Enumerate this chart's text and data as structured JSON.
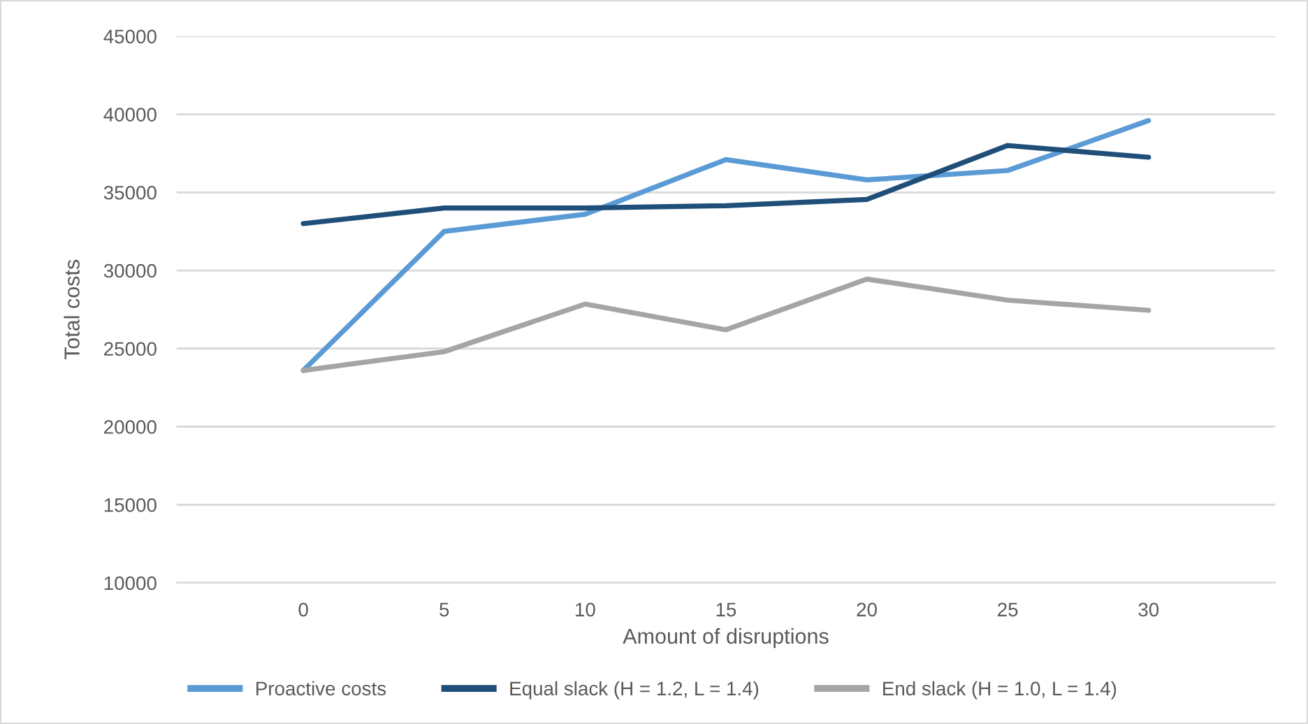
{
  "chart_data": {
    "type": "line",
    "xlabel": "Amount of disruptions",
    "ylabel": "Total costs",
    "categories": [
      "0",
      "5",
      "10",
      "15",
      "20",
      "25",
      "30"
    ],
    "series": [
      {
        "name": "Proactive costs",
        "color": "#5b9bd5",
        "values": [
          23600,
          32500,
          33600,
          37100,
          35800,
          36400,
          39600
        ]
      },
      {
        "name": "Equal slack (H = 1.2, L = 1.4)",
        "color": "#1f4e79",
        "values": [
          33000,
          34000,
          34000,
          34150,
          34550,
          38000,
          37250
        ]
      },
      {
        "name": "End slack (H = 1.0, L = 1.4)",
        "color": "#a5a5a5",
        "values": [
          23600,
          24800,
          27850,
          26200,
          29450,
          28100,
          27450
        ]
      }
    ],
    "ylim": [
      10000,
      45000
    ],
    "yticks": [
      10000,
      15000,
      20000,
      25000,
      30000,
      35000,
      40000,
      45000
    ],
    "grid": "y",
    "legend": "bottom",
    "marker": "none",
    "line_style": "solid"
  }
}
